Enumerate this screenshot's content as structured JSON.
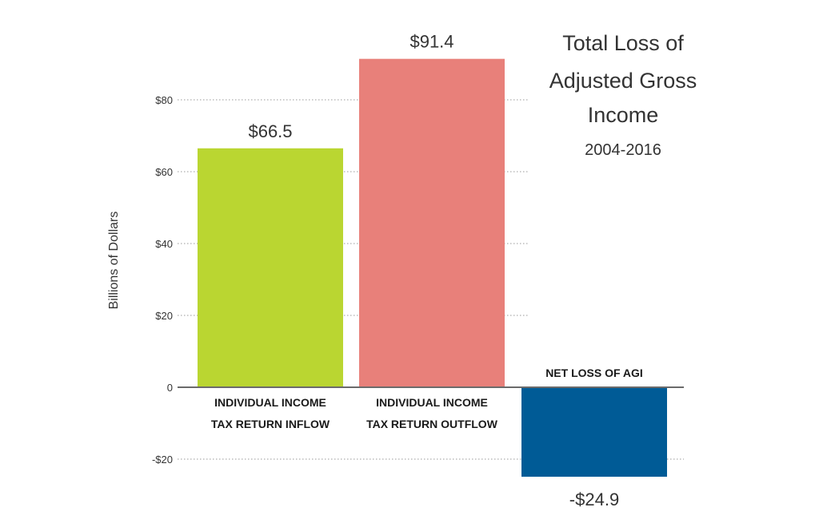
{
  "chart_data": {
    "type": "bar",
    "title_lines": [
      "Total Loss of",
      "Adjusted Gross",
      "Income"
    ],
    "subtitle": "2004-2016",
    "ylabel": "Billions of Dollars",
    "xlabel": "",
    "ylim": [
      -24.9,
      91.4
    ],
    "ticks": [
      {
        "value": 80,
        "label": "$80"
      },
      {
        "value": 60,
        "label": "$60"
      },
      {
        "value": 40,
        "label": "$40"
      },
      {
        "value": 20,
        "label": "$20"
      },
      {
        "value": 0,
        "label": "0"
      },
      {
        "value": -20,
        "label": "-$20"
      }
    ],
    "grid": true,
    "bars": [
      {
        "label_lines": [
          "INDIVIDUAL INCOME",
          "TAX RETURN INFLOW"
        ],
        "value": 66.5,
        "value_label": "$66.5",
        "color": "#bad631"
      },
      {
        "label_lines": [
          "INDIVIDUAL INCOME",
          "TAX RETURN OUTFLOW"
        ],
        "value": 91.4,
        "value_label": "$91.4",
        "color": "#e8807a"
      },
      {
        "label_lines": [
          "NET LOSS OF AGI"
        ],
        "value": -24.9,
        "value_label": "-$24.9",
        "color": "#005b96"
      }
    ]
  }
}
